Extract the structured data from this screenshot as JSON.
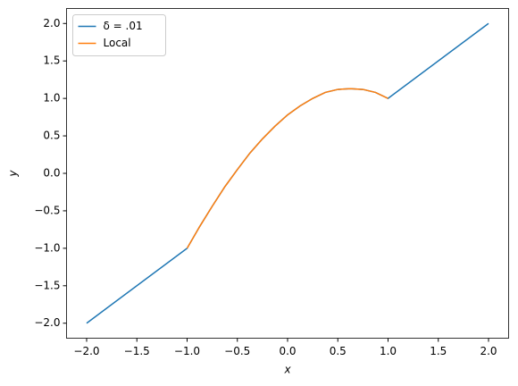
{
  "chart_data": {
    "type": "line",
    "xlabel": "x",
    "ylabel": "y",
    "xlim": [
      -2.2,
      2.2
    ],
    "ylim": [
      -2.2,
      2.2
    ],
    "xticks": [
      {
        "value": -2,
        "label": "−2.0"
      },
      {
        "value": -1.5,
        "label": "−1.5"
      },
      {
        "value": -1,
        "label": "−1.0"
      },
      {
        "value": -0.5,
        "label": "−0.5"
      },
      {
        "value": 0,
        "label": "0.0"
      },
      {
        "value": 0.5,
        "label": "0.5"
      },
      {
        "value": 1,
        "label": "1.0"
      },
      {
        "value": 1.5,
        "label": "1.5"
      },
      {
        "value": 2,
        "label": "2.0"
      }
    ],
    "yticks": [
      {
        "value": -2,
        "label": "−2.0"
      },
      {
        "value": -1.5,
        "label": "−1.5"
      },
      {
        "value": -1,
        "label": "−1.0"
      },
      {
        "value": -0.5,
        "label": "−0.5"
      },
      {
        "value": 0,
        "label": "0.0"
      },
      {
        "value": 0.5,
        "label": "0.5"
      },
      {
        "value": 1,
        "label": "1.0"
      },
      {
        "value": 1.5,
        "label": "1.5"
      },
      {
        "value": 2,
        "label": "2.0"
      }
    ],
    "legend": "upper left",
    "series": [
      {
        "name": "δ = .01",
        "color": "#1f77b4",
        "x": [
          -2,
          -1,
          -0.875,
          -0.75,
          -0.625,
          -0.5,
          -0.375,
          -0.25,
          -0.125,
          0,
          0.125,
          0.25,
          0.375,
          0.5,
          0.625,
          0.75,
          0.875,
          1,
          2
        ],
        "values": [
          -2,
          -1,
          -0.71,
          -0.44,
          -0.18,
          0.05,
          0.27,
          0.46,
          0.63,
          0.78,
          0.9,
          1.0,
          1.08,
          1.12,
          1.13,
          1.12,
          1.08,
          1,
          2
        ]
      },
      {
        "name": "Local",
        "color": "#ff7f0e",
        "x": [
          -1,
          -0.875,
          -0.75,
          -0.625,
          -0.5,
          -0.375,
          -0.25,
          -0.125,
          0,
          0.125,
          0.25,
          0.375,
          0.5,
          0.625,
          0.75,
          0.875,
          1
        ],
        "values": [
          -1,
          -0.71,
          -0.44,
          -0.18,
          0.05,
          0.27,
          0.46,
          0.63,
          0.78,
          0.9,
          1.0,
          1.08,
          1.12,
          1.13,
          1.12,
          1.08,
          1
        ]
      }
    ]
  }
}
